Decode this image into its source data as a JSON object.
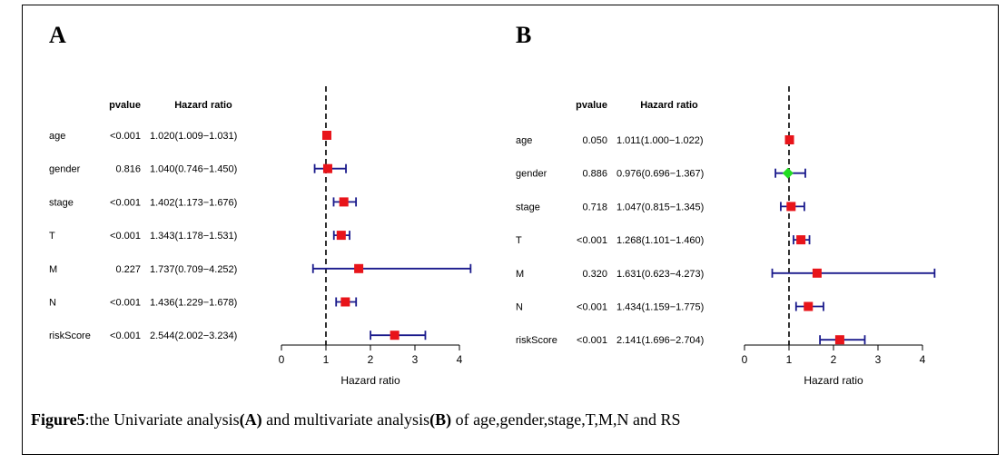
{
  "panels": [
    {
      "letter": "A",
      "header_pvalue": "pvalue",
      "header_hr": "Hazard ratio",
      "xlabel": "Hazard ratio"
    },
    {
      "letter": "B",
      "header_pvalue": "pvalue",
      "header_hr": "Hazard ratio",
      "xlabel": "Hazard ratio"
    }
  ],
  "caption": {
    "figure": "Figure5",
    "text1": ":the Univariate analysis",
    "labelA": "(A)",
    "text2": " and multivariate analysis",
    "labelB": "(B)",
    "text3": " of age,gender,stage,T,M,N and RS"
  },
  "chart_data": [
    {
      "type": "forest",
      "xlabel": "Hazard ratio",
      "xlim": [
        0,
        4
      ],
      "xticks": [
        0,
        1,
        2,
        3,
        4
      ],
      "reference_line": 1,
      "colors": {
        "point": "#e8141a",
        "ci": "#1a1a8c",
        "nonsig": "#22dd22"
      },
      "rows": [
        {
          "var": "age",
          "pvalue": "<0.001",
          "hr_text": "1.020(1.009−1.031)",
          "hr": 1.02,
          "lo": 1.009,
          "hi": 1.031
        },
        {
          "var": "gender",
          "pvalue": "0.816",
          "hr_text": "1.040(0.746−1.450)",
          "hr": 1.04,
          "lo": 0.746,
          "hi": 1.45
        },
        {
          "var": "stage",
          "pvalue": "<0.001",
          "hr_text": "1.402(1.173−1.676)",
          "hr": 1.402,
          "lo": 1.173,
          "hi": 1.676
        },
        {
          "var": "T",
          "pvalue": "<0.001",
          "hr_text": "1.343(1.178−1.531)",
          "hr": 1.343,
          "lo": 1.178,
          "hi": 1.531
        },
        {
          "var": "M",
          "pvalue": "0.227",
          "hr_text": "1.737(0.709−4.252)",
          "hr": 1.737,
          "lo": 0.709,
          "hi": 4.252
        },
        {
          "var": "N",
          "pvalue": "<0.001",
          "hr_text": "1.436(1.229−1.678)",
          "hr": 1.436,
          "lo": 1.229,
          "hi": 1.678
        },
        {
          "var": "riskScore",
          "pvalue": "<0.001",
          "hr_text": "2.544(2.002−3.234)",
          "hr": 2.544,
          "lo": 2.002,
          "hi": 3.234
        }
      ]
    },
    {
      "type": "forest",
      "xlabel": "Hazard ratio",
      "xlim": [
        0,
        4
      ],
      "xticks": [
        0,
        1,
        2,
        3,
        4
      ],
      "reference_line": 1,
      "colors": {
        "point": "#e8141a",
        "ci": "#1a1a8c",
        "nonsig": "#22dd22"
      },
      "rows": [
        {
          "var": "age",
          "pvalue": "0.050",
          "hr_text": "1.011(1.000−1.022)",
          "hr": 1.011,
          "lo": 1.0,
          "hi": 1.022
        },
        {
          "var": "gender",
          "pvalue": "0.886",
          "hr_text": "0.976(0.696−1.367)",
          "hr": 0.976,
          "lo": 0.696,
          "hi": 1.367,
          "nonsig": true
        },
        {
          "var": "stage",
          "pvalue": "0.718",
          "hr_text": "1.047(0.815−1.345)",
          "hr": 1.047,
          "lo": 0.815,
          "hi": 1.345
        },
        {
          "var": "T",
          "pvalue": "<0.001",
          "hr_text": "1.268(1.101−1.460)",
          "hr": 1.268,
          "lo": 1.101,
          "hi": 1.46
        },
        {
          "var": "M",
          "pvalue": "0.320",
          "hr_text": "1.631(0.623−4.273)",
          "hr": 1.631,
          "lo": 0.623,
          "hi": 4.273
        },
        {
          "var": "N",
          "pvalue": "<0.001",
          "hr_text": "1.434(1.159−1.775)",
          "hr": 1.434,
          "lo": 1.159,
          "hi": 1.775
        },
        {
          "var": "riskScore",
          "pvalue": "<0.001",
          "hr_text": "2.141(1.696−2.704)",
          "hr": 2.141,
          "lo": 1.696,
          "hi": 2.704
        }
      ]
    }
  ]
}
